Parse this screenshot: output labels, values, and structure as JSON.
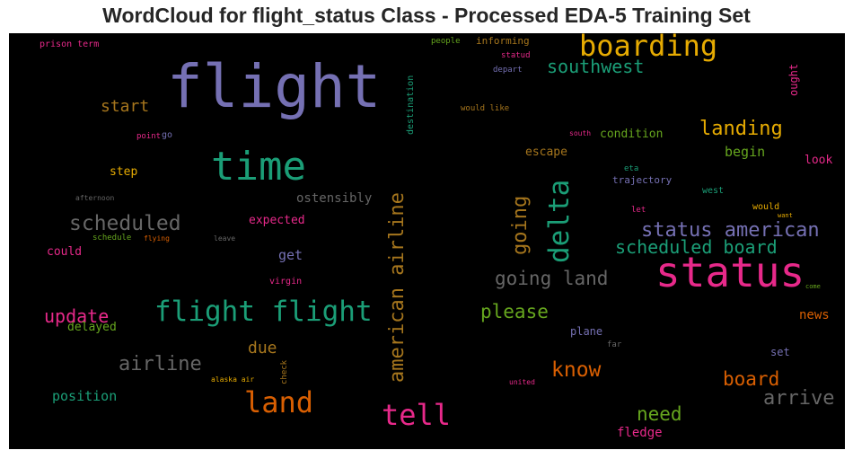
{
  "title": "WordCloud for flight_status Class - Processed EDA-5 Training Set",
  "background": "#000000",
  "words": {
    "flight": "flight",
    "time": "time",
    "status": "status",
    "boarding": "boarding",
    "flight_flight": "flight flight",
    "land": "land",
    "tell": "tell",
    "delta": "delta",
    "southwest": "southwest",
    "landing": "landing",
    "scheduled": "scheduled",
    "status_american": "status american",
    "scheduled_board": "scheduled board",
    "going_land": "going land",
    "american_airline": "american airline",
    "going": "going",
    "airline": "airline",
    "know": "know",
    "please": "please",
    "update": "update",
    "board": "board",
    "arrive": "arrive",
    "need": "need",
    "start": "start",
    "due": "due",
    "position": "position",
    "begin": "begin",
    "condition": "condition",
    "escape": "escape",
    "expected": "expected",
    "get": "get",
    "ostensibly": "ostensibly",
    "news": "news",
    "fledge": "fledge",
    "step": "step",
    "could": "could",
    "delayed": "delayed",
    "plane": "plane",
    "trajectory": "trajectory",
    "look": "look",
    "set": "set",
    "prison_term": "prison term",
    "informing": "informing",
    "people": "people",
    "statud": "statud",
    "depart": "depart",
    "would_like": "would like",
    "ought": "ought",
    "destination": "destination",
    "point": "point",
    "go": "go",
    "south": "south",
    "eta": "eta",
    "west": "west",
    "afternoon": "afternoon",
    "would": "would",
    "want": "want",
    "let": "let",
    "schedule": "schedule",
    "flying": "flying",
    "leave": "leave",
    "virgin": "virgin",
    "far": "far",
    "come": "come",
    "check": "check",
    "alaska_air": "alaska air",
    "united": "united"
  }
}
